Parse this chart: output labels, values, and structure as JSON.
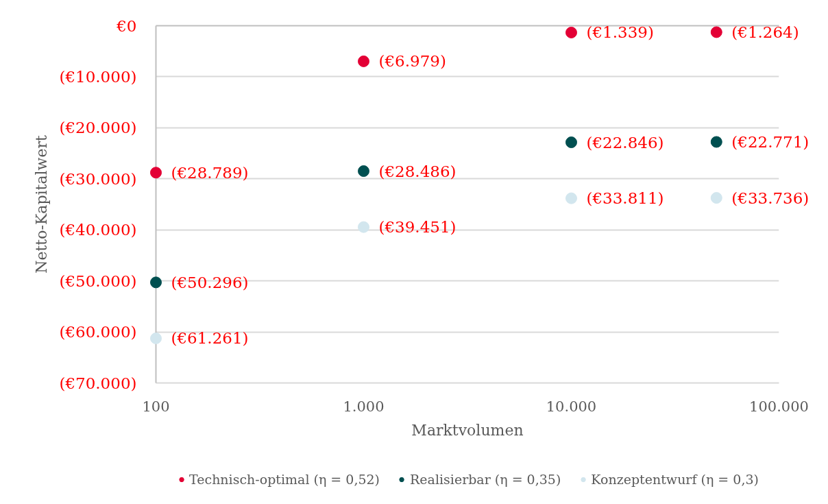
{
  "chart_data": {
    "type": "scatter",
    "xlabel": "Marktvolumen",
    "ylabel": "Netto-Kapitalwert",
    "log": "x",
    "x": [
      100,
      1000,
      10000,
      50000
    ],
    "xlim": [
      100,
      100000
    ],
    "xticks": [
      100,
      {
        "value": 1000,
        "label": "1.000"
      },
      {
        "value": 10000,
        "label": "10.000"
      },
      {
        "value": 100000,
        "label": "100.000"
      }
    ],
    "ylim": [
      -70000,
      0
    ],
    "yticks": [
      {
        "value": 0,
        "label": "€0"
      },
      {
        "value": -10000,
        "label": "(€10.000)"
      },
      {
        "value": -20000,
        "label": "(€20.000)"
      },
      {
        "value": -30000,
        "label": "(€30.000)"
      },
      {
        "value": -40000,
        "label": "(€40.000)"
      },
      {
        "value": -50000,
        "label": "(€50.000)"
      },
      {
        "value": -60000,
        "label": "(€60.000)"
      },
      {
        "value": -70000,
        "label": "(€70.000)"
      }
    ],
    "grid": "y",
    "legend": "bottom",
    "marker": "circle",
    "series": [
      {
        "name": "Technisch-optimal (η = 0,52)",
        "color": "#e30035",
        "values": [
          -28789,
          -6979,
          -1339,
          -1264
        ],
        "value_labels": [
          "(€28.789)",
          "(€6.979)",
          "(€1.339)",
          "(€1.264)"
        ]
      },
      {
        "name": "Realisierbar (η = 0,35)",
        "color": "#004f50",
        "values": [
          -50296,
          -28486,
          -22846,
          -22771
        ],
        "value_labels": [
          "(€50.296)",
          "(€28.486)",
          "(€22.846)",
          "(€22.771)"
        ]
      },
      {
        "name": "Konzeptentwurf (η = 0,3)",
        "color": "#d2e6ee",
        "values": [
          -61261,
          -39451,
          -33811,
          -33736
        ],
        "value_labels": [
          "(€61.261)",
          "(€39.451)",
          "(€33.811)",
          "(€33.736)"
        ]
      }
    ]
  }
}
